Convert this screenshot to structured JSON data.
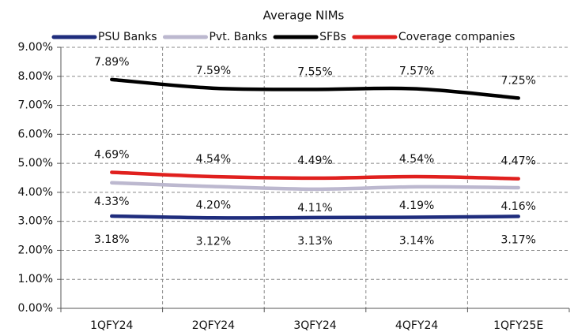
{
  "chart_data": {
    "type": "line",
    "title": "Average NIMs",
    "categories": [
      "1QFY24",
      "2QFY24",
      "3QFY24",
      "4QFY24",
      "1QFY25E"
    ],
    "series": [
      {
        "name": "PSU Banks",
        "color": "#1f2d7d",
        "values": [
          3.18,
          3.12,
          3.13,
          3.14,
          3.17
        ],
        "value_labels": [
          "3.18%",
          "3.12%",
          "3.13%",
          "3.14%",
          "3.17%"
        ]
      },
      {
        "name": "Pvt. Banks",
        "color": "#bcb8cf",
        "values": [
          4.33,
          4.2,
          4.11,
          4.19,
          4.16
        ],
        "value_labels": [
          "4.33%",
          "4.20%",
          "4.11%",
          "4.19%",
          "4.16%"
        ]
      },
      {
        "name": "SFBs",
        "color": "#000000",
        "values": [
          7.89,
          7.59,
          7.55,
          7.57,
          7.25
        ],
        "value_labels": [
          "7.89%",
          "7.59%",
          "7.55%",
          "7.57%",
          "7.25%"
        ]
      },
      {
        "name": "Coverage companies",
        "color": "#e0201e",
        "values": [
          4.69,
          4.54,
          4.49,
          4.54,
          4.47
        ],
        "value_labels": [
          "4.69%",
          "4.54%",
          "4.49%",
          "4.54%",
          "4.47%"
        ]
      }
    ],
    "ylim": [
      0,
      9
    ],
    "yticks": [
      {
        "value": 0,
        "label": "0.00%"
      },
      {
        "value": 1,
        "label": "1.00%"
      },
      {
        "value": 2,
        "label": "2.00%"
      },
      {
        "value": 3,
        "label": "3.00%"
      },
      {
        "value": 4,
        "label": "4.00%"
      },
      {
        "value": 5,
        "label": "5.00%"
      },
      {
        "value": 6,
        "label": "6.00%"
      },
      {
        "value": 7,
        "label": "7.00%"
      },
      {
        "value": 8,
        "label": "8.00%"
      },
      {
        "value": 9,
        "label": "9.00%"
      }
    ],
    "grid": true,
    "legend": "top"
  }
}
